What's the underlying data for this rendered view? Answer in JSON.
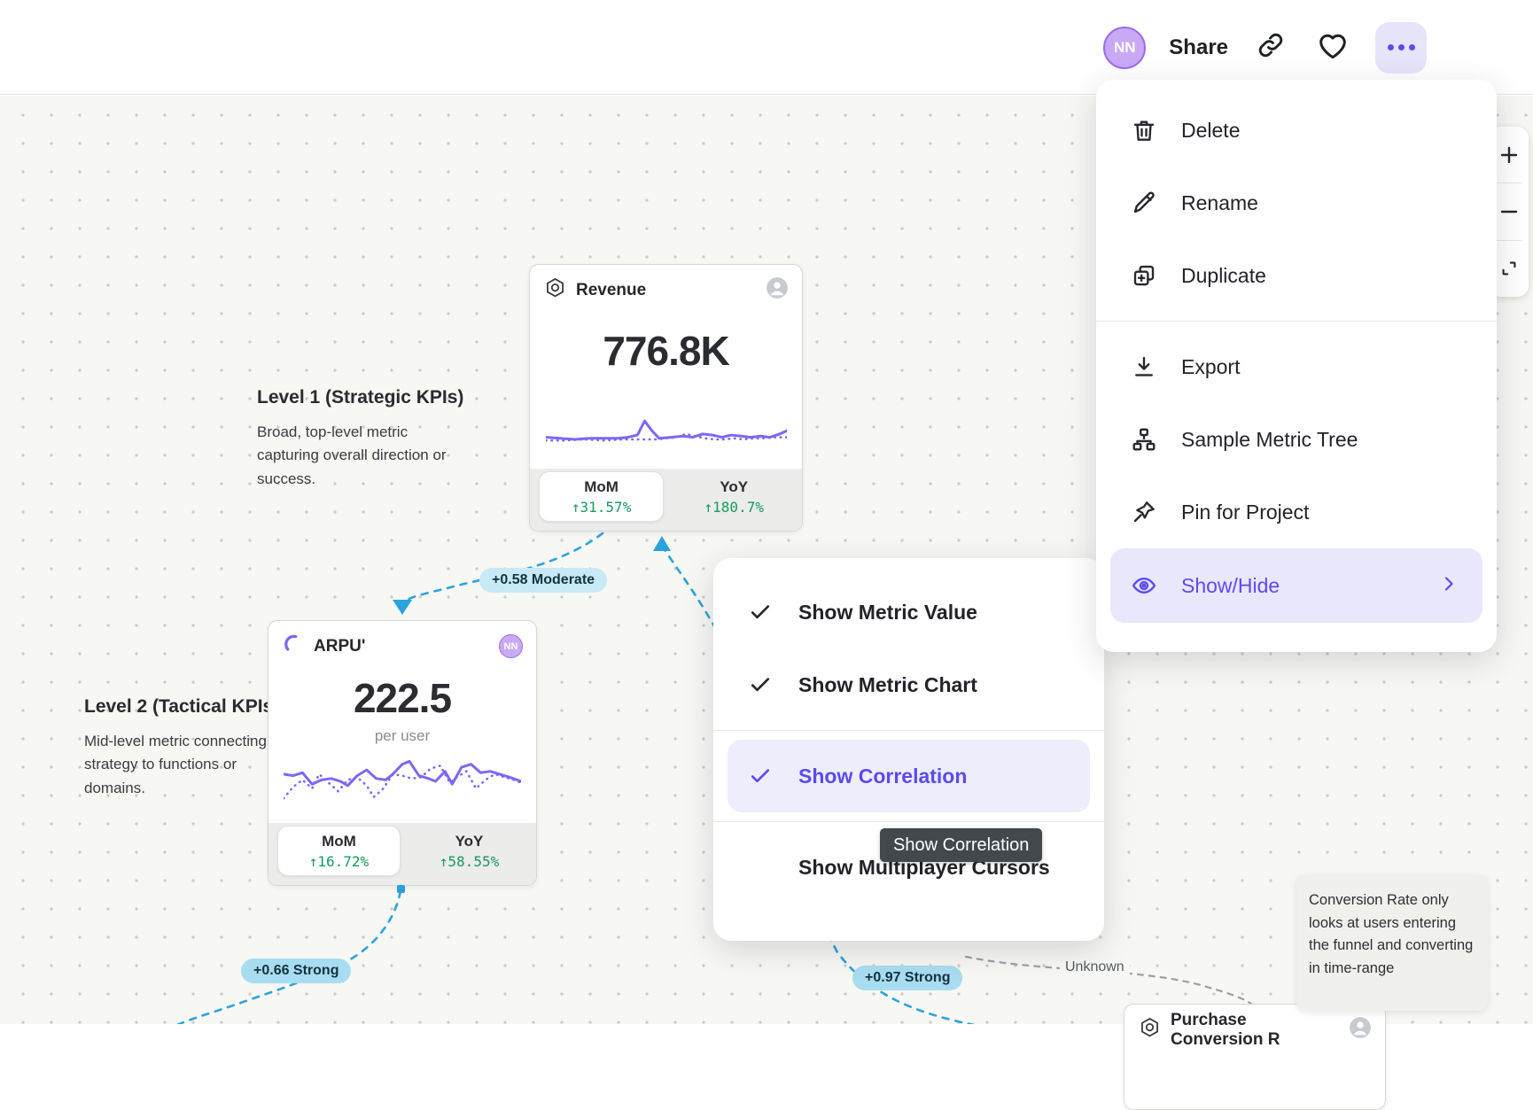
{
  "topbar": {
    "avatar_initials": "NN",
    "share_label": "Share"
  },
  "menu": {
    "items": [
      {
        "label": "Delete",
        "icon": "trash-icon"
      },
      {
        "label": "Rename",
        "icon": "pencil-icon"
      },
      {
        "label": "Duplicate",
        "icon": "duplicate-icon"
      },
      {
        "label": "Export",
        "icon": "download-icon"
      },
      {
        "label": "Sample Metric Tree",
        "icon": "metric-tree-icon"
      },
      {
        "label": "Pin for Project",
        "icon": "pin-icon"
      },
      {
        "label": "Show/Hide",
        "icon": "eye-icon",
        "highlighted": true
      }
    ]
  },
  "view_menu": {
    "items": [
      {
        "label": "Show Metric Value",
        "checked": true
      },
      {
        "label": "Show Metric Chart",
        "checked": true
      },
      {
        "label": "Show Correlation",
        "checked": true,
        "highlighted": true
      },
      {
        "label": "Show Multiplayer Cursors",
        "checked": false
      }
    ],
    "tooltip": "Show Correlation"
  },
  "canvas": {
    "level1_title": "Level 1 (Strategic KPIs)",
    "level1_desc": "Broad, top-level metric capturing overall direction or success.",
    "level2_title": "Level 2 (Tactical KPIs)",
    "level2_desc": "Mid-level metric connecting strategy to functions or domains.",
    "badges": {
      "revenue_arpu": "+0.58 Moderate",
      "arpu_child": "+0.66 Strong",
      "revenue_child": "+0.97 Strong",
      "unknown_label": "Unknown"
    },
    "note_text": "Conversion Rate only looks at users entering the funnel and converting in time-range"
  },
  "cards": {
    "revenue": {
      "title": "Revenue",
      "value": "776.8K",
      "mom_label": "MoM",
      "mom_value": "↑31.57%",
      "yoy_label": "YoY",
      "yoy_value": "↑180.7%",
      "sparkline": {
        "solid": [
          [
            0,
            25
          ],
          [
            6,
            26
          ],
          [
            12,
            27
          ],
          [
            18,
            26
          ],
          [
            24,
            26
          ],
          [
            30,
            26
          ],
          [
            34,
            25
          ],
          [
            38,
            23
          ],
          [
            41,
            10
          ],
          [
            44,
            19
          ],
          [
            47,
            26
          ],
          [
            52,
            25
          ],
          [
            57,
            24
          ],
          [
            61,
            25
          ],
          [
            65,
            22
          ],
          [
            69,
            23
          ],
          [
            73,
            25
          ],
          [
            77,
            23
          ],
          [
            81,
            24
          ],
          [
            85,
            25
          ],
          [
            89,
            24
          ],
          [
            93,
            25
          ],
          [
            97,
            22
          ],
          [
            100,
            19
          ]
        ],
        "dotted": [
          [
            0,
            28
          ],
          [
            8,
            28
          ],
          [
            16,
            27
          ],
          [
            24,
            28
          ],
          [
            32,
            27
          ],
          [
            38,
            27
          ],
          [
            42,
            27
          ],
          [
            46,
            27
          ],
          [
            50,
            26
          ],
          [
            54,
            25
          ],
          [
            58,
            22
          ],
          [
            62,
            24
          ],
          [
            66,
            26
          ],
          [
            70,
            27
          ],
          [
            74,
            27
          ],
          [
            78,
            26
          ],
          [
            82,
            27
          ],
          [
            86,
            26
          ],
          [
            90,
            26
          ],
          [
            95,
            25
          ],
          [
            100,
            25
          ]
        ]
      }
    },
    "arpu": {
      "title": "ARPU'",
      "value": "222.5",
      "unit": "per user",
      "avatar_initials": "NN",
      "mom_label": "MoM",
      "mom_value": "↑16.72%",
      "yoy_label": "YoY",
      "yoy_value": "↑58.55%",
      "sparkline": {
        "solid": [
          [
            0,
            13
          ],
          [
            4,
            14
          ],
          [
            8,
            12
          ],
          [
            12,
            20
          ],
          [
            16,
            17
          ],
          [
            20,
            16
          ],
          [
            24,
            18
          ],
          [
            27,
            21
          ],
          [
            31,
            14
          ],
          [
            35,
            10
          ],
          [
            39,
            16
          ],
          [
            43,
            17
          ],
          [
            46,
            13
          ],
          [
            50,
            6
          ],
          [
            53,
            4
          ],
          [
            57,
            14
          ],
          [
            61,
            16
          ],
          [
            64,
            18
          ],
          [
            68,
            11
          ],
          [
            71,
            20
          ],
          [
            75,
            8
          ],
          [
            79,
            6
          ],
          [
            83,
            12
          ],
          [
            87,
            11
          ],
          [
            91,
            13
          ],
          [
            95,
            15
          ],
          [
            100,
            18
          ]
        ],
        "dotted": [
          [
            0,
            30
          ],
          [
            4,
            22
          ],
          [
            8,
            17
          ],
          [
            12,
            23
          ],
          [
            15,
            13
          ],
          [
            19,
            19
          ],
          [
            23,
            25
          ],
          [
            27,
            17
          ],
          [
            31,
            15
          ],
          [
            35,
            21
          ],
          [
            38,
            29
          ],
          [
            42,
            23
          ],
          [
            46,
            13
          ],
          [
            50,
            14
          ],
          [
            54,
            16
          ],
          [
            58,
            15
          ],
          [
            62,
            9
          ],
          [
            66,
            7
          ],
          [
            70,
            19
          ],
          [
            73,
            15
          ],
          [
            77,
            11
          ],
          [
            81,
            23
          ],
          [
            85,
            17
          ],
          [
            89,
            13
          ],
          [
            93,
            15
          ],
          [
            97,
            17
          ],
          [
            100,
            19
          ]
        ]
      }
    },
    "purchase": {
      "title": "Purchase Conversion R"
    }
  },
  "zoom_controls": {
    "zoom_in": "+",
    "zoom_out": "−"
  },
  "colors": {
    "accent_purple": "#5b4af0",
    "chart_purple": "#7b68f4",
    "positive_green": "#17995f",
    "edge_blue": "#2aa3dc",
    "badge_moderate_bg": "#c8e9f6",
    "badge_strong_bg": "#a8ddf1"
  }
}
